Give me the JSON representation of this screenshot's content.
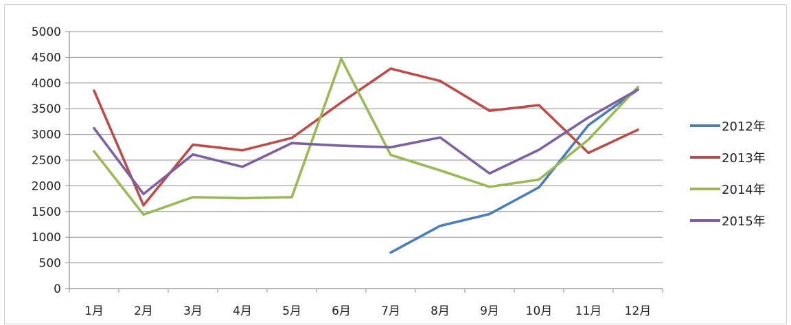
{
  "chart_data": {
    "type": "line",
    "title": "",
    "xlabel": "",
    "ylabel": "",
    "categories": [
      "1月",
      "2月",
      "3月",
      "4月",
      "5月",
      "6月",
      "7月",
      "8月",
      "9月",
      "10月",
      "11月",
      "12月"
    ],
    "ylim": [
      0,
      5000
    ],
    "yticks": [
      0,
      500,
      1000,
      1500,
      2000,
      2500,
      3000,
      3500,
      4000,
      4500,
      5000
    ],
    "grid": true,
    "legend_position": "right",
    "series": [
      {
        "name": "2012年",
        "color": "#4a7ebb",
        "values": [
          null,
          null,
          null,
          null,
          null,
          null,
          700,
          1220,
          1450,
          1970,
          3180,
          3870
        ]
      },
      {
        "name": "2013年",
        "color": "#be4b48",
        "values": [
          3850,
          1620,
          2800,
          2690,
          2930,
          3620,
          4280,
          4040,
          3460,
          3570,
          2640,
          3090
        ]
      },
      {
        "name": "2014年",
        "color": "#98b954",
        "values": [
          2670,
          1440,
          1780,
          1760,
          1780,
          4470,
          2600,
          2300,
          1980,
          2120,
          2900,
          3920
        ]
      },
      {
        "name": "2015年",
        "color": "#7d60a0",
        "values": [
          3120,
          1840,
          2610,
          2370,
          2830,
          2780,
          2750,
          2940,
          2240,
          2700,
          3330,
          3870
        ]
      }
    ]
  }
}
